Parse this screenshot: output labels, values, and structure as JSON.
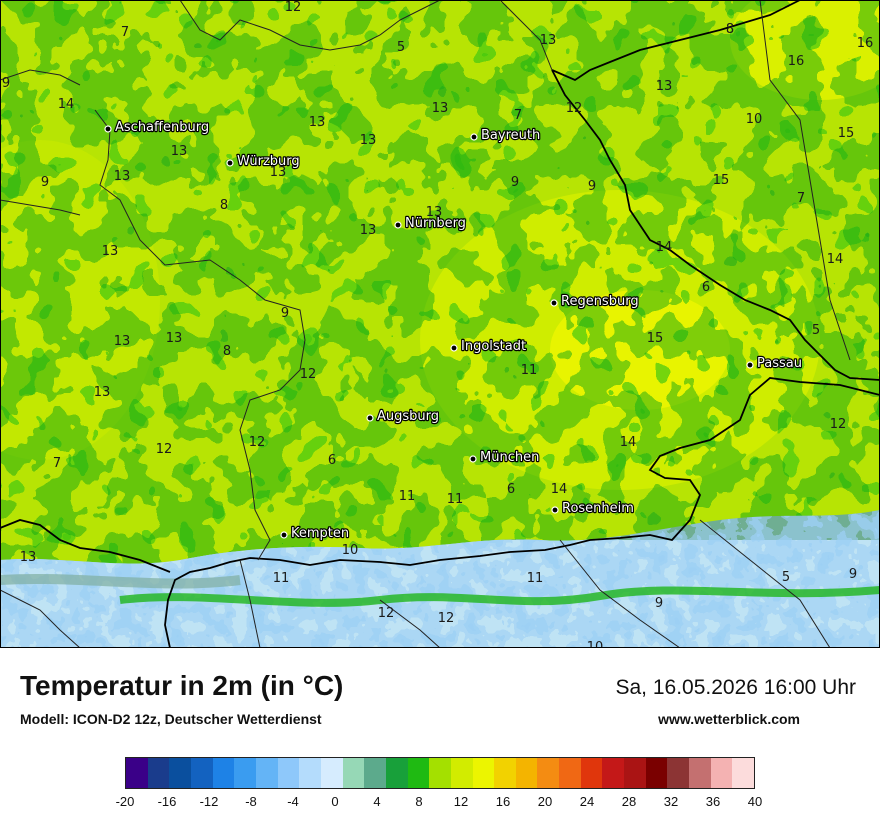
{
  "title": "Temperatur in 2m (in °C)",
  "model": "Modell: ICON-D2 12z, Deutscher Wetterdienst",
  "datetime": "Sa, 16.05.2026 16:00 Uhr",
  "website": "www.wetterblick.com",
  "colors": {
    "deep_green": "#18a818",
    "mid_green": "#44c812",
    "yellow_green": "#9ede08",
    "lime": "#c9ef00",
    "yellow": "#eaf400",
    "alpine_grey": "#7fae9f",
    "alpine_light": "#c8e6f5",
    "alpine_blue": "#8cc6f0"
  },
  "legend": {
    "colors": [
      "#3a0088",
      "#1a3c8c",
      "#0a4f9e",
      "#1362c0",
      "#1e82e6",
      "#3a9cf0",
      "#64b4f6",
      "#8ec8fa",
      "#b4dcfc",
      "#d6ecfe",
      "#96d8b6",
      "#5caa8c",
      "#18a03a",
      "#1fba12",
      "#a4e000",
      "#d2ec00",
      "#ecf500",
      "#f2d200",
      "#f4b400",
      "#f48c12",
      "#f06814",
      "#e0360c",
      "#c41818",
      "#aa1414",
      "#7a0000",
      "#8c3434",
      "#c47070",
      "#f4b2b2",
      "#fcdcdc"
    ],
    "ticks": [
      "-20",
      "-16",
      "-12",
      "-8",
      "-4",
      "0",
      "4",
      "8",
      "12",
      "16",
      "20",
      "24",
      "28",
      "32",
      "36",
      "40"
    ]
  },
  "cities": [
    {
      "name": "Aschaffenburg"
    },
    {
      "name": "Würzburg"
    },
    {
      "name": "Bayreuth"
    },
    {
      "name": "Nürnberg"
    },
    {
      "name": "Regensburg"
    },
    {
      "name": "Ingolstadt"
    },
    {
      "name": "Passau"
    },
    {
      "name": "Augsburg"
    },
    {
      "name": "München"
    },
    {
      "name": "Rosenheim"
    },
    {
      "name": "Kempten"
    }
  ],
  "temperature_labels": [
    "12",
    "7",
    "5",
    "13",
    "8",
    "16",
    "9",
    "14",
    "13",
    "16",
    "13",
    "7",
    "12",
    "13",
    "10",
    "15",
    "13",
    "13",
    "13",
    "9",
    "9",
    "15",
    "9",
    "7",
    "8",
    "13",
    "13",
    "13",
    "14",
    "14",
    "6",
    "9",
    "5",
    "13",
    "13",
    "8",
    "13",
    "12",
    "11",
    "15",
    "13",
    "12",
    "14",
    "12",
    "7",
    "6",
    "11",
    "11",
    "6",
    "14",
    "12",
    "10",
    "11",
    "11",
    "5",
    "9",
    "12",
    "12",
    "9",
    "10",
    "13"
  ]
}
